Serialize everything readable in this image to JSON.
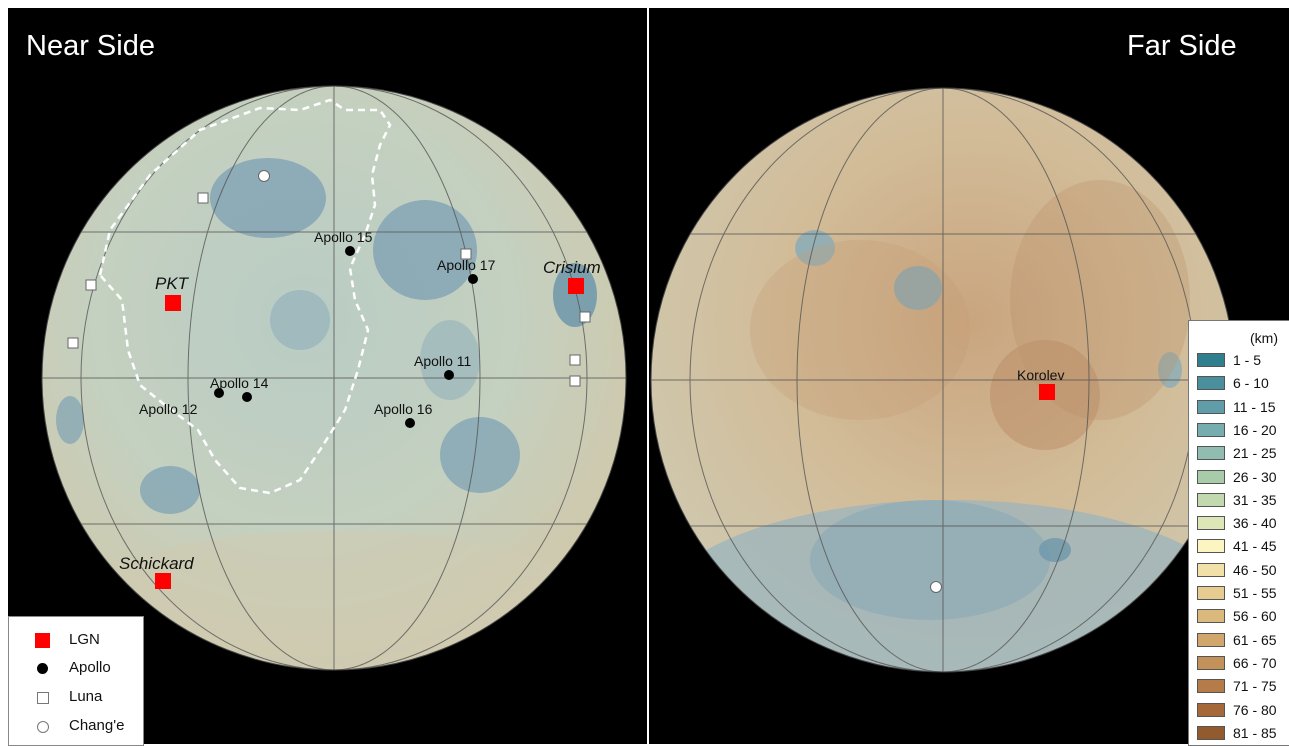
{
  "titles": {
    "near": "Near Side",
    "far": "Far Side"
  },
  "near_sites": {
    "lgn": [
      {
        "name": "PKT"
      },
      {
        "name": "Crisium"
      },
      {
        "name": "Schickard"
      }
    ],
    "apollo": [
      {
        "name": "Apollo 15"
      },
      {
        "name": "Apollo 17"
      },
      {
        "name": "Apollo 11"
      },
      {
        "name": "Apollo 14"
      },
      {
        "name": "Apollo 12"
      },
      {
        "name": "Apollo 16"
      }
    ]
  },
  "far_sites": {
    "lgn": [
      {
        "name": "Korolev"
      }
    ]
  },
  "site_legend": [
    {
      "symbol": "lgn",
      "label": "LGN"
    },
    {
      "symbol": "apollo",
      "label": "Apollo"
    },
    {
      "symbol": "luna",
      "label": "Luna"
    },
    {
      "symbol": "change",
      "label": "Chang'e"
    }
  ],
  "elevation_legend": {
    "unit": "(km)",
    "classes": [
      {
        "label": "1 - 5",
        "color": "#2f7f8e"
      },
      {
        "label": "6 - 10",
        "color": "#4a8f9c"
      },
      {
        "label": "11 - 15",
        "color": "#5f9da8"
      },
      {
        "label": "16 - 20",
        "color": "#76adaf"
      },
      {
        "label": "21 - 25",
        "color": "#90bdb0"
      },
      {
        "label": "26 - 30",
        "color": "#a8cba9"
      },
      {
        "label": "31 - 35",
        "color": "#c2d8ae"
      },
      {
        "label": "36 - 40",
        "color": "#dde6b7"
      },
      {
        "label": "41 - 45",
        "color": "#fbf5c2"
      },
      {
        "label": "46 - 50",
        "color": "#f1e0a7"
      },
      {
        "label": "51 - 55",
        "color": "#e6cc91"
      },
      {
        "label": "56 - 60",
        "color": "#dbb87c"
      },
      {
        "label": "61 - 65",
        "color": "#d0a66d"
      },
      {
        "label": "66 - 70",
        "color": "#c3915a"
      },
      {
        "label": "71 - 75",
        "color": "#b57c49"
      },
      {
        "label": "76 - 80",
        "color": "#a46839"
      },
      {
        "label": "81 - 85",
        "color": "#935a2e"
      }
    ]
  },
  "colors": {
    "lgn": "#ff0000",
    "apollo": "#000000",
    "luna": "#ffffff",
    "change": "#ffffff",
    "background": "#000000"
  }
}
